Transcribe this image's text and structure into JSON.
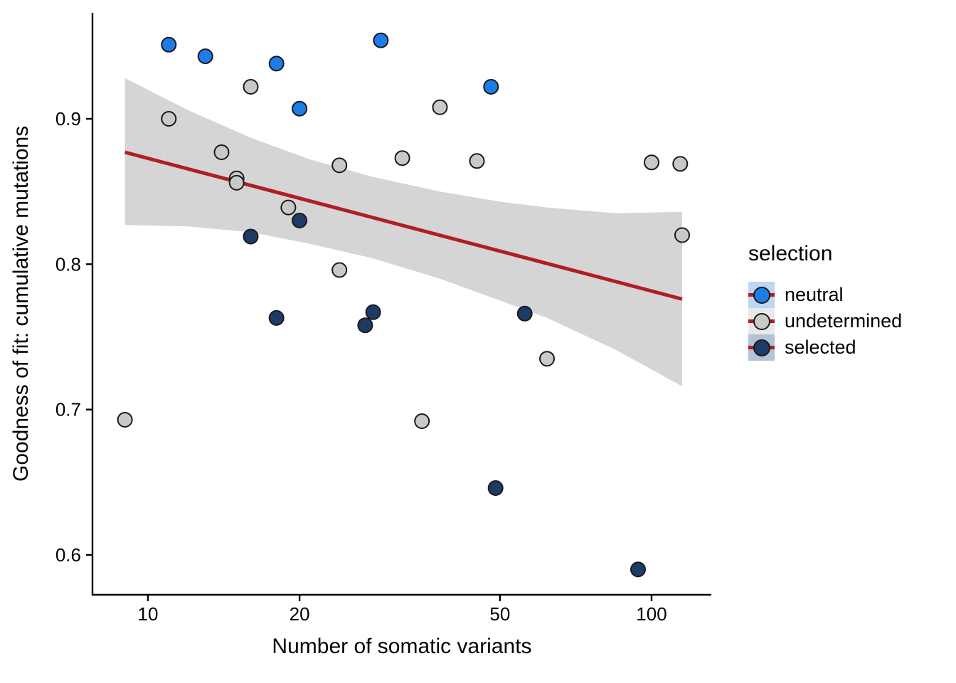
{
  "figure": {
    "background": "#FFFFFF"
  },
  "chart_data": {
    "type": "scatter",
    "title": "",
    "xlabel": "Number of somatic variants",
    "ylabel": "Goodness of fit: cumulative mutations",
    "x_scale": "log10",
    "grid": "off",
    "x_ticks": [
      "10",
      "20",
      "50",
      "100"
    ],
    "x_tick_values": [
      10,
      20,
      50,
      100
    ],
    "y_ticks": [
      "0.6",
      "0.7",
      "0.8",
      "0.9"
    ],
    "y_tick_values": [
      0.6,
      0.7,
      0.8,
      0.9
    ],
    "x_range": [
      7.8,
      131
    ],
    "y_range": [
      0.573,
      0.973
    ],
    "legend": {
      "title": "selection",
      "position": "right",
      "entries": [
        {
          "label": "neutral",
          "point_color": "#1E7CE8",
          "key_background": "#BDD6F2"
        },
        {
          "label": "undetermined",
          "point_color": "#C9C9C9",
          "key_background": "#E9E9E9"
        },
        {
          "label": "selected",
          "point_color": "#1E3B66",
          "key_background": "#B3C3D6"
        }
      ]
    },
    "series": [
      {
        "name": "neutral",
        "color": "#1E7CE8",
        "points": [
          [
            11,
            0.951
          ],
          [
            13,
            0.943
          ],
          [
            18,
            0.938
          ],
          [
            20,
            0.907
          ],
          [
            29,
            0.954
          ],
          [
            48,
            0.922
          ]
        ]
      },
      {
        "name": "undetermined",
        "color": "#C9C9C9",
        "points": [
          [
            9,
            0.693
          ],
          [
            11,
            0.9
          ],
          [
            14,
            0.877
          ],
          [
            15,
            0.859
          ],
          [
            15,
            0.856
          ],
          [
            16,
            0.922
          ],
          [
            19,
            0.839
          ],
          [
            24,
            0.868
          ],
          [
            24,
            0.796
          ],
          [
            32,
            0.873
          ],
          [
            35,
            0.692
          ],
          [
            38,
            0.908
          ],
          [
            45,
            0.871
          ],
          [
            62,
            0.735
          ],
          [
            100,
            0.87
          ],
          [
            114,
            0.869
          ],
          [
            115,
            0.82
          ]
        ]
      },
      {
        "name": "selected",
        "color": "#1E3B66",
        "points": [
          [
            16,
            0.819
          ],
          [
            18,
            0.763
          ],
          [
            20,
            0.83
          ],
          [
            27,
            0.758
          ],
          [
            28,
            0.767
          ],
          [
            49,
            0.646
          ],
          [
            56,
            0.766
          ],
          [
            94,
            0.59
          ]
        ]
      }
    ],
    "regression_line": {
      "color": "#B01E24",
      "x_start": 9,
      "y_start": 0.877,
      "x_end": 115,
      "y_end": 0.776
    },
    "confidence_band": {
      "color": "#D5D5D5",
      "points": [
        {
          "x": 9,
          "upper": 0.928,
          "lower": 0.827
        },
        {
          "x": 12,
          "upper": 0.906,
          "lower": 0.826
        },
        {
          "x": 16,
          "upper": 0.887,
          "lower": 0.822
        },
        {
          "x": 21,
          "upper": 0.872,
          "lower": 0.814
        },
        {
          "x": 28,
          "upper": 0.86,
          "lower": 0.804
        },
        {
          "x": 38,
          "upper": 0.85,
          "lower": 0.79
        },
        {
          "x": 50,
          "upper": 0.843,
          "lower": 0.775
        },
        {
          "x": 62,
          "upper": 0.839,
          "lower": 0.763
        },
        {
          "x": 85,
          "upper": 0.835,
          "lower": 0.741
        },
        {
          "x": 115,
          "upper": 0.836,
          "lower": 0.716
        }
      ]
    },
    "style": {
      "point_radius": 10,
      "point_stroke": "#1A1A1A",
      "axis_color": "#000000"
    }
  }
}
